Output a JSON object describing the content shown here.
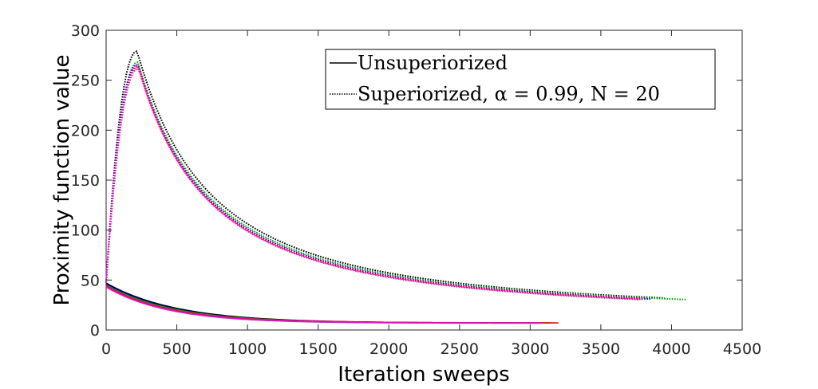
{
  "chart_data": {
    "type": "line",
    "title": "",
    "xlabel": "Iteration sweeps",
    "ylabel": "Proximity function value",
    "xlim": [
      0,
      4500
    ],
    "ylim": [
      0,
      300
    ],
    "xticks": [
      0,
      500,
      1000,
      1500,
      2000,
      2500,
      3000,
      3500,
      4000,
      4500
    ],
    "yticks": [
      0,
      50,
      100,
      150,
      200,
      250,
      300
    ],
    "grid": false,
    "legend_position": "top-right",
    "legend": [
      {
        "label": "Unsuperiorized",
        "style": "solid"
      },
      {
        "label": "Superiorized, α = 0.99, N = 20",
        "style": "dotted"
      }
    ],
    "series": [
      {
        "name": "Unsuperiorized (black)",
        "style": "solid",
        "color": "#000000",
        "y0": 47,
        "yinf": 7.0,
        "end": 3050,
        "tau": 500
      },
      {
        "name": "Unsuperiorized (blue)",
        "style": "solid",
        "color": "#0000ff",
        "y0": 46,
        "yinf": 7.0,
        "end": 3000,
        "tau": 480
      },
      {
        "name": "Unsuperiorized (green)",
        "style": "solid",
        "color": "#00aa00",
        "y0": 45,
        "yinf": 7.2,
        "end": 3150,
        "tau": 470
      },
      {
        "name": "Unsuperiorized (red)",
        "style": "solid",
        "color": "#ff0000",
        "y0": 44,
        "yinf": 7.1,
        "end": 3200,
        "tau": 450
      },
      {
        "name": "Unsuperiorized (magenta)",
        "style": "solid",
        "color": "#ff00ff",
        "y0": 43,
        "yinf": 6.8,
        "end": 3080,
        "tau": 440
      },
      {
        "name": "Superiorized (black)",
        "style": "dotted",
        "color": "#000000",
        "y0": 47,
        "peak": 279,
        "peak_x": 220,
        "end": 3950,
        "yinf": 14,
        "tau": 800
      },
      {
        "name": "Superiorized (green)",
        "style": "dotted",
        "color": "#00aa00",
        "y0": 47,
        "peak": 268,
        "peak_x": 225,
        "end": 4100,
        "yinf": 14,
        "tau": 800
      },
      {
        "name": "Superiorized (blue)",
        "style": "dotted",
        "color": "#0000ff",
        "y0": 47,
        "peak": 266,
        "peak_x": 225,
        "end": 3850,
        "yinf": 13.5,
        "tau": 790
      },
      {
        "name": "Superiorized (red)",
        "style": "dotted",
        "color": "#ff0000",
        "y0": 47,
        "peak": 264,
        "peak_x": 228,
        "end": 3800,
        "yinf": 13.5,
        "tau": 780
      },
      {
        "name": "Superiorized (magenta)",
        "style": "dotted",
        "color": "#ff00ff",
        "y0": 47,
        "peak": 262,
        "peak_x": 230,
        "end": 3780,
        "yinf": 13,
        "tau": 780
      }
    ]
  }
}
